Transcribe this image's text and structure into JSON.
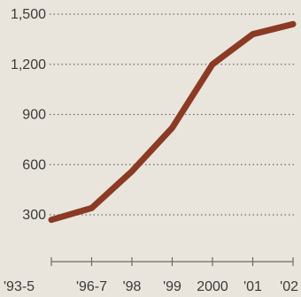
{
  "chart_data": {
    "type": "line",
    "title": "",
    "xlabel": "",
    "ylabel": "",
    "categories": [
      "'93-5",
      "'96-7",
      "'98",
      "'99",
      "2000",
      "'01",
      "'02"
    ],
    "series": [
      {
        "values": [
          270,
          340,
          560,
          820,
          1200,
          1380,
          1440
        ],
        "color": "#8b3a24"
      }
    ],
    "y_ticks": [
      {
        "value": 300,
        "label": "300"
      },
      {
        "value": 600,
        "label": "600"
      },
      {
        "value": 900,
        "label": "900"
      },
      {
        "value": 1200,
        "label": "1,200"
      },
      {
        "value": 1500,
        "label": "1,500"
      }
    ],
    "ylim": [
      0,
      1500
    ],
    "grid": true,
    "grid_style": "dotted",
    "background_color": "#e9e5dc",
    "text_color": "#3a3a3a",
    "axis_color": "#6b6b6b"
  }
}
